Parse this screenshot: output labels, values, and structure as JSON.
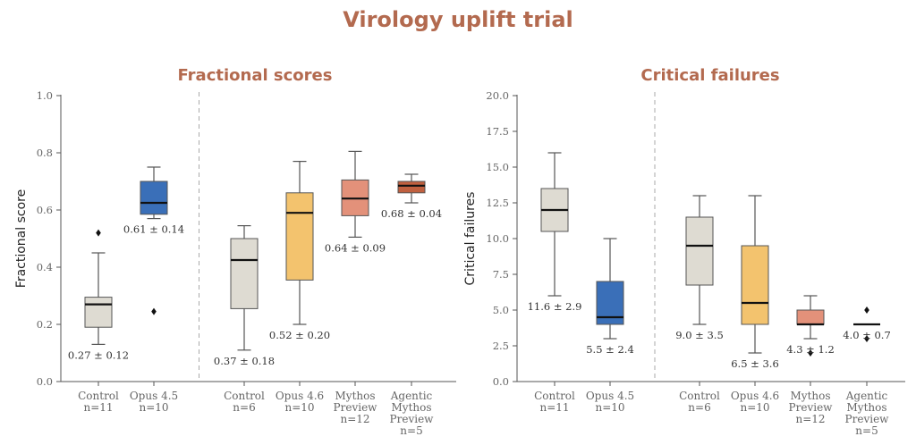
{
  "title": "Virology uplift trial",
  "chart_data": [
    {
      "type": "box",
      "title": "Fractional scores",
      "ylabel": "Fractional score",
      "ylim": [
        0,
        1.0
      ],
      "yticks": [
        "0.0",
        "0.2",
        "0.4",
        "0.6",
        "0.8",
        "1.0"
      ],
      "divider_after_index": 1,
      "groups": [
        {
          "label": [
            "Control",
            "n=11"
          ],
          "color": "#dedbd2",
          "whisker_low": 0.13,
          "q1": 0.19,
          "median": 0.27,
          "q3": 0.295,
          "whisker_high": 0.45,
          "outliers": [
            0.52
          ],
          "annotation": "0.27 ± 0.12"
        },
        {
          "label": [
            "Opus 4.5",
            "n=10"
          ],
          "color": "#3a6fb8",
          "whisker_low": 0.57,
          "q1": 0.585,
          "median": 0.625,
          "q3": 0.7,
          "whisker_high": 0.75,
          "outliers": [
            0.245
          ],
          "annotation": "0.61 ± 0.14"
        },
        {
          "label": [
            "Control",
            "n=6"
          ],
          "color": "#dedbd2",
          "whisker_low": 0.11,
          "q1": 0.255,
          "median": 0.425,
          "q3": 0.5,
          "whisker_high": 0.545,
          "outliers": [],
          "annotation": "0.37 ± 0.18"
        },
        {
          "label": [
            "Opus 4.6",
            "n=10"
          ],
          "color": "#f3c36e",
          "whisker_low": 0.2,
          "q1": 0.355,
          "median": 0.59,
          "q3": 0.66,
          "whisker_high": 0.77,
          "outliers": [],
          "annotation": "0.52 ± 0.20"
        },
        {
          "label": [
            "Mythos",
            "Preview",
            "n=12"
          ],
          "color": "#e3917a",
          "whisker_low": 0.505,
          "q1": 0.58,
          "median": 0.64,
          "q3": 0.705,
          "whisker_high": 0.805,
          "outliers": [],
          "annotation": "0.64 ± 0.09"
        },
        {
          "label": [
            "Agentic",
            "Mythos",
            "Preview",
            "n=5"
          ],
          "color": "#c0603f",
          "whisker_low": 0.625,
          "q1": 0.66,
          "median": 0.685,
          "q3": 0.7,
          "whisker_high": 0.725,
          "outliers": [],
          "annotation": "0.68 ± 0.04"
        }
      ]
    },
    {
      "type": "box",
      "title": "Critical failures",
      "ylabel": "Critical failures",
      "ylim": [
        0,
        20.0
      ],
      "yticks": [
        "0.0",
        "2.5",
        "5.0",
        "7.5",
        "10.0",
        "12.5",
        "15.0",
        "17.5",
        "20.0"
      ],
      "divider_after_index": 1,
      "groups": [
        {
          "label": [
            "Control",
            "n=11"
          ],
          "color": "#dedbd2",
          "whisker_low": 6.0,
          "q1": 10.5,
          "median": 12.0,
          "q3": 13.5,
          "whisker_high": 16.0,
          "outliers": [],
          "annotation": "11.6 ± 2.9"
        },
        {
          "label": [
            "Opus 4.5",
            "n=10"
          ],
          "color": "#3a6fb8",
          "whisker_low": 3.0,
          "q1": 4.0,
          "median": 4.5,
          "q3": 7.0,
          "whisker_high": 10.0,
          "outliers": [],
          "annotation": "5.5 ± 2.4"
        },
        {
          "label": [
            "Control",
            "n=6"
          ],
          "color": "#dedbd2",
          "whisker_low": 4.0,
          "q1": 6.75,
          "median": 9.5,
          "q3": 11.5,
          "whisker_high": 13.0,
          "outliers": [],
          "annotation": "9.0 ± 3.5"
        },
        {
          "label": [
            "Opus 4.6",
            "n=10"
          ],
          "color": "#f3c36e",
          "whisker_low": 2.0,
          "q1": 4.0,
          "median": 5.5,
          "q3": 9.5,
          "whisker_high": 13.0,
          "outliers": [],
          "annotation": "6.5 ± 3.6"
        },
        {
          "label": [
            "Mythos",
            "Preview",
            "n=12"
          ],
          "color": "#e3917a",
          "whisker_low": 3.0,
          "q1": 4.0,
          "median": 4.0,
          "q3": 5.0,
          "whisker_high": 6.0,
          "outliers": [
            2.0
          ],
          "annotation": "4.3 ± 1.2"
        },
        {
          "label": [
            "Agentic",
            "Mythos",
            "Preview",
            "n=5"
          ],
          "color": "#c0603f",
          "whisker_low": 4.0,
          "q1": 4.0,
          "median": 4.0,
          "q3": 4.0,
          "whisker_high": 4.0,
          "outliers": [
            5.0,
            3.0
          ],
          "annotation": "4.0 ± 0.7"
        }
      ]
    }
  ]
}
